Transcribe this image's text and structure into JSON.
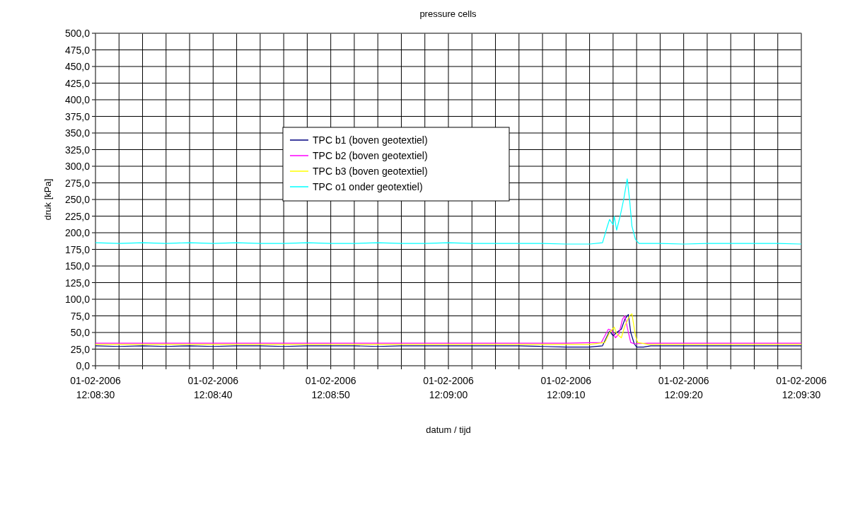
{
  "chart_data": {
    "type": "line",
    "title": "pressure cells",
    "xlabel": "datum / tijd",
    "ylabel": "druk [kPa]",
    "xlim": [
      "2006-02-01T12:08:30",
      "2006-02-01T12:09:30"
    ],
    "ylim": [
      0,
      500
    ],
    "xticks": [
      {
        "value": "2006-02-01T12:08:30",
        "label": "01-02-2006 12:08:30"
      },
      {
        "value": "2006-02-01T12:08:32",
        "label": null
      },
      {
        "value": "2006-02-01T12:08:34",
        "label": null
      },
      {
        "value": "2006-02-01T12:08:36",
        "label": null
      },
      {
        "value": "2006-02-01T12:08:38",
        "label": null
      },
      {
        "value": "2006-02-01T12:08:40",
        "label": "01-02-2006 12:08:40"
      },
      {
        "value": "2006-02-01T12:08:42",
        "label": null
      },
      {
        "value": "2006-02-01T12:08:44",
        "label": null
      },
      {
        "value": "2006-02-01T12:08:46",
        "label": null
      },
      {
        "value": "2006-02-01T12:08:48",
        "label": null
      },
      {
        "value": "2006-02-01T12:08:50",
        "label": "01-02-2006 12:08:50"
      },
      {
        "value": "2006-02-01T12:08:52",
        "label": null
      },
      {
        "value": "2006-02-01T12:08:54",
        "label": null
      },
      {
        "value": "2006-02-01T12:08:56",
        "label": null
      },
      {
        "value": "2006-02-01T12:08:58",
        "label": null
      },
      {
        "value": "2006-02-01T12:09:00",
        "label": "01-02-2006 12:09:00"
      },
      {
        "value": "2006-02-01T12:09:02",
        "label": null
      },
      {
        "value": "2006-02-01T12:09:04",
        "label": null
      },
      {
        "value": "2006-02-01T12:09:06",
        "label": null
      },
      {
        "value": "2006-02-01T12:09:08",
        "label": null
      },
      {
        "value": "2006-02-01T12:09:10",
        "label": "01-02-2006 12:09:10"
      },
      {
        "value": "2006-02-01T12:09:12",
        "label": null
      },
      {
        "value": "2006-02-01T12:09:14",
        "label": null
      },
      {
        "value": "2006-02-01T12:09:16",
        "label": null
      },
      {
        "value": "2006-02-01T12:09:18",
        "label": null
      },
      {
        "value": "2006-02-01T12:09:20",
        "label": "01-02-2006 12:09:20"
      },
      {
        "value": "2006-02-01T12:09:22",
        "label": null
      },
      {
        "value": "2006-02-01T12:09:24",
        "label": null
      },
      {
        "value": "2006-02-01T12:09:26",
        "label": null
      },
      {
        "value": "2006-02-01T12:09:28",
        "label": null
      },
      {
        "value": "2006-02-01T12:09:30",
        "label": "01-02-2006 12:09:30"
      }
    ],
    "yticks": [
      {
        "value": 0,
        "label": "0,0"
      },
      {
        "value": 25,
        "label": "25,0"
      },
      {
        "value": 50,
        "label": "50,0"
      },
      {
        "value": 75,
        "label": "75,0"
      },
      {
        "value": 100,
        "label": "100,0"
      },
      {
        "value": 125,
        "label": "125,0"
      },
      {
        "value": 150,
        "label": "150,0"
      },
      {
        "value": 175,
        "label": "175,0"
      },
      {
        "value": 200,
        "label": "200,0"
      },
      {
        "value": 225,
        "label": "225,0"
      },
      {
        "value": 250,
        "label": "250,0"
      },
      {
        "value": 275,
        "label": "275,0"
      },
      {
        "value": 300,
        "label": "300,0"
      },
      {
        "value": 325,
        "label": "325,0"
      },
      {
        "value": 350,
        "label": "350,0"
      },
      {
        "value": 375,
        "label": "375,0"
      },
      {
        "value": 400,
        "label": "400,0"
      },
      {
        "value": 425,
        "label": "425,0"
      },
      {
        "value": 450,
        "label": "450,0"
      },
      {
        "value": 475,
        "label": "475,0"
      },
      {
        "value": 500,
        "label": "500,0"
      }
    ],
    "grid": true,
    "legend": "top",
    "marker": "none",
    "line_style": "solid",
    "series": [
      {
        "name": "TPC b1 (boven geotextiel)",
        "color": "#000080",
        "x": [
          "2006-02-01T12:08:30",
          "2006-02-01T12:08:32",
          "2006-02-01T12:08:34",
          "2006-02-01T12:08:36",
          "2006-02-01T12:08:38",
          "2006-02-01T12:08:40",
          "2006-02-01T12:08:42",
          "2006-02-01T12:08:44",
          "2006-02-01T12:08:46",
          "2006-02-01T12:08:48",
          "2006-02-01T12:08:50",
          "2006-02-01T12:08:52",
          "2006-02-01T12:08:54",
          "2006-02-01T12:08:56",
          "2006-02-01T12:08:58",
          "2006-02-01T12:09:00",
          "2006-02-01T12:09:02",
          "2006-02-01T12:09:04",
          "2006-02-01T12:09:06",
          "2006-02-01T12:09:08",
          "2006-02-01T12:09:10",
          "2006-02-01T12:09:12",
          "2006-02-01T12:09:13.1",
          "2006-02-01T12:09:13.5",
          "2006-02-01T12:09:13.7",
          "2006-02-01T12:09:14.0",
          "2006-02-01T12:09:14.3",
          "2006-02-01T12:09:14.7",
          "2006-02-01T12:09:15.0",
          "2006-02-01T12:09:15.3",
          "2006-02-01T12:09:15.5",
          "2006-02-01T12:09:15.8",
          "2006-02-01T12:09:16.0",
          "2006-02-01T12:09:16.6",
          "2006-02-01T12:09:17.2",
          "2006-02-01T12:09:20",
          "2006-02-01T12:09:22",
          "2006-02-01T12:09:24",
          "2006-02-01T12:09:26",
          "2006-02-01T12:09:28",
          "2006-02-01T12:09:30"
        ],
        "values": [
          30,
          29,
          30,
          29,
          30,
          29,
          30,
          30,
          29,
          30,
          30,
          30,
          29,
          30,
          30,
          30,
          30,
          30,
          30,
          29,
          28,
          28,
          30,
          45,
          52,
          45,
          50,
          55,
          70,
          77,
          50,
          33,
          28,
          28,
          30,
          30,
          30,
          30,
          30,
          30,
          30
        ]
      },
      {
        "name": "TPC b2 (boven geotextiel)",
        "color": "#ff00ff",
        "x": [
          "2006-02-01T12:08:30",
          "2006-02-01T12:08:34",
          "2006-02-01T12:08:38",
          "2006-02-01T12:08:42",
          "2006-02-01T12:08:46",
          "2006-02-01T12:08:50",
          "2006-02-01T12:08:54",
          "2006-02-01T12:08:58",
          "2006-02-01T12:09:02",
          "2006-02-01T12:09:06",
          "2006-02-01T12:09:10",
          "2006-02-01T12:09:13.0",
          "2006-02-01T12:09:13.3",
          "2006-02-01T12:09:13.6",
          "2006-02-01T12:09:13.9",
          "2006-02-01T12:09:14.2",
          "2006-02-01T12:09:14.5",
          "2006-02-01T12:09:14.8",
          "2006-02-01T12:09:15.0",
          "2006-02-01T12:09:15.3",
          "2006-02-01T12:09:15.5",
          "2006-02-01T12:09:15.8",
          "2006-02-01T12:09:17",
          "2006-02-01T12:09:20",
          "2006-02-01T12:09:24",
          "2006-02-01T12:09:28",
          "2006-02-01T12:09:30"
        ],
        "values": [
          34,
          34,
          34,
          34,
          34,
          34,
          34,
          34,
          34,
          34,
          34,
          35,
          45,
          55,
          53,
          42,
          48,
          70,
          75,
          50,
          35,
          33,
          34,
          34,
          34,
          34,
          34
        ]
      },
      {
        "name": "TPC b3 (boven geotextiel)",
        "color": "#ffff00",
        "x": [
          "2006-02-01T12:08:30",
          "2006-02-01T12:08:34",
          "2006-02-01T12:08:38",
          "2006-02-01T12:08:42",
          "2006-02-01T12:08:46",
          "2006-02-01T12:08:50",
          "2006-02-01T12:08:54",
          "2006-02-01T12:08:58",
          "2006-02-01T12:09:02",
          "2006-02-01T12:09:06",
          "2006-02-01T12:09:10",
          "2006-02-01T12:09:12",
          "2006-02-01T12:09:13.3",
          "2006-02-01T12:09:13.7",
          "2006-02-01T12:09:14.1",
          "2006-02-01T12:09:14.3",
          "2006-02-01T12:09:14.7",
          "2006-02-01T12:09:15.0",
          "2006-02-01T12:09:15.4",
          "2006-02-01T12:09:15.6",
          "2006-02-01T12:09:15.9",
          "2006-02-01T12:09:16.1",
          "2006-02-01T12:09:17",
          "2006-02-01T12:09:20",
          "2006-02-01T12:09:24",
          "2006-02-01T12:09:28",
          "2006-02-01T12:09:30"
        ],
        "values": [
          32,
          32,
          32,
          32,
          32,
          32,
          32,
          32,
          32,
          32,
          32,
          32,
          35,
          50,
          58,
          48,
          42,
          60,
          75,
          78,
          45,
          35,
          32,
          32,
          32,
          32,
          32
        ]
      },
      {
        "name": "TPC o1 onder geotextiel)",
        "color": "#00ffff",
        "x": [
          "2006-02-01T12:08:30",
          "2006-02-01T12:08:32",
          "2006-02-01T12:08:34",
          "2006-02-01T12:08:36",
          "2006-02-01T12:08:38",
          "2006-02-01T12:08:40",
          "2006-02-01T12:08:42",
          "2006-02-01T12:08:44",
          "2006-02-01T12:08:46",
          "2006-02-01T12:08:48",
          "2006-02-01T12:08:50",
          "2006-02-01T12:08:52",
          "2006-02-01T12:08:54",
          "2006-02-01T12:08:56",
          "2006-02-01T12:08:58",
          "2006-02-01T12:09:00",
          "2006-02-01T12:09:02",
          "2006-02-01T12:09:04",
          "2006-02-01T12:09:06",
          "2006-02-01T12:09:08",
          "2006-02-01T12:09:10",
          "2006-02-01T12:09:12",
          "2006-02-01T12:09:13.1",
          "2006-02-01T12:09:13.5",
          "2006-02-01T12:09:13.7",
          "2006-02-01T12:09:14.0",
          "2006-02-01T12:09:14.1",
          "2006-02-01T12:09:14.3",
          "2006-02-01T12:09:14.6",
          "2006-02-01T12:09:14.9",
          "2006-02-01T12:09:15.2",
          "2006-02-01T12:09:15.4",
          "2006-02-01T12:09:15.6",
          "2006-02-01T12:09:15.9",
          "2006-02-01T12:09:16.2",
          "2006-02-01T12:09:18",
          "2006-02-01T12:09:20",
          "2006-02-01T12:09:22",
          "2006-02-01T12:09:24",
          "2006-02-01T12:09:26",
          "2006-02-01T12:09:28",
          "2006-02-01T12:09:30"
        ],
        "values": [
          185,
          184,
          185,
          184,
          185,
          184,
          185,
          184,
          184,
          185,
          184,
          184,
          185,
          184,
          184,
          185,
          184,
          184,
          184,
          184,
          183,
          183,
          185,
          209,
          220,
          212,
          225,
          204,
          225,
          250,
          281,
          250,
          210,
          190,
          184,
          184,
          183,
          184,
          184,
          184,
          184,
          183
        ]
      }
    ]
  }
}
